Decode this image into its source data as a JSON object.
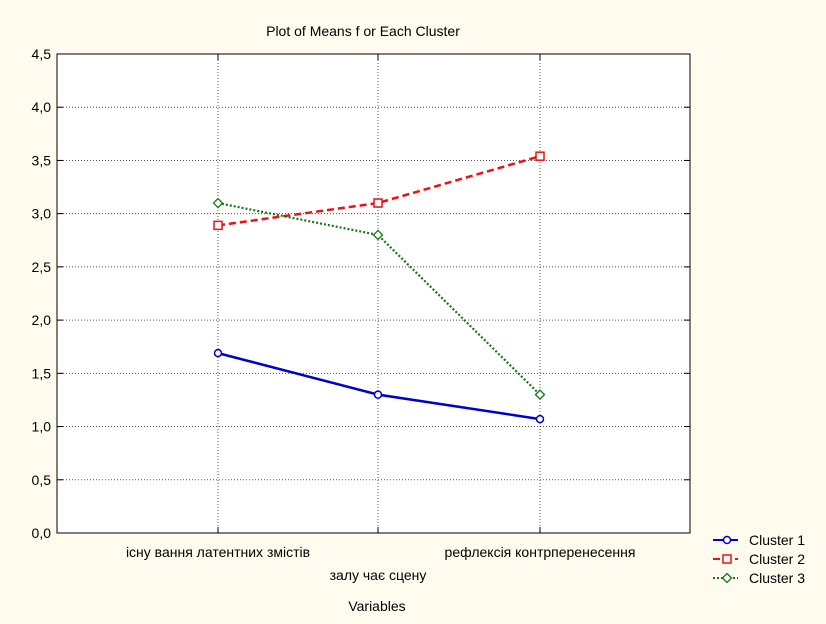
{
  "chart_data": {
    "type": "line",
    "title": "Plot of Means f or Each Cluster",
    "xlabel": "Variables",
    "ylabel": "",
    "ylim": [
      0,
      4.5
    ],
    "yticks": [
      "0,0",
      "0,5",
      "1,0",
      "1,5",
      "2,0",
      "2,5",
      "3,0",
      "3,5",
      "4,0",
      "4,5"
    ],
    "categories": [
      "існу вання латентних змістів",
      "залу чає сцену",
      "рефлексія контрперенесення"
    ],
    "grid": true,
    "legend_position": "bottom-right",
    "series": [
      {
        "name": "Cluster  1",
        "values": [
          1.69,
          1.3,
          1.07
        ],
        "color": "#0000cc",
        "dash": "solid",
        "marker": "circle"
      },
      {
        "name": "Cluster  2",
        "values": [
          2.89,
          3.1,
          3.54
        ],
        "color": "#ee1111",
        "dash": "dashed",
        "marker": "square"
      },
      {
        "name": "Cluster  3",
        "values": [
          3.1,
          2.8,
          1.3
        ],
        "color": "#117711",
        "dash": "dotted",
        "marker": "diamond"
      }
    ]
  }
}
